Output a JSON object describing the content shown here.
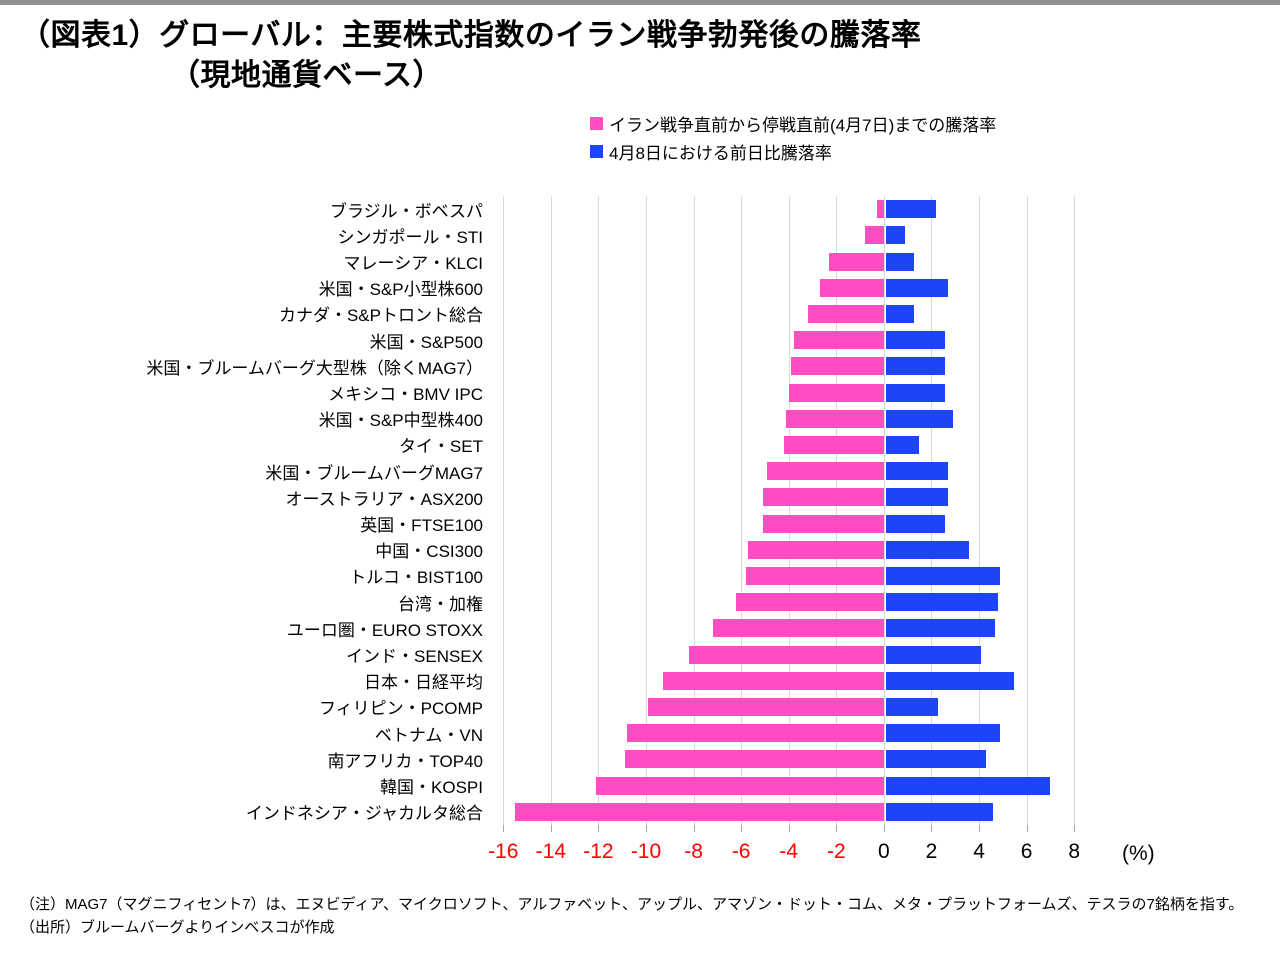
{
  "title": {
    "line1": "（図表1）グローバル：主要株式指数のイラン戦争勃発後の騰落率",
    "line2": "（現地通貨ベース）"
  },
  "legend": [
    {
      "label": "イラン戦争直前から停戦直前(4月7日)までの騰落率",
      "color": "#ff4cc3"
    },
    {
      "label": "4月8日における前日比騰落率",
      "color": "#1e44f5"
    }
  ],
  "chart_data": {
    "type": "bar",
    "orientation": "horizontal",
    "title": "（図表1）グローバル：主要株式指数のイラン戦争勃発後の騰落率（現地通貨ベース）",
    "xlabel": "(%)",
    "xlim": [
      -16.6,
      9.0
    ],
    "xticks": [
      -16,
      -14,
      -12,
      -10,
      -8,
      -6,
      -4,
      -2,
      0,
      2,
      4,
      6,
      8
    ],
    "grid": true,
    "legend_position": "top",
    "negative_tick_color": "#ff0000",
    "positive_tick_color": "#000000",
    "categories": [
      "ブラジル・ボベスパ",
      "シンガポール・STI",
      "マレーシア・KLCI",
      "米国・S&P小型株600",
      "カナダ・S&Pトロント総合",
      "米国・S&P500",
      "米国・ブルームバーグ大型株（除くMAG7）",
      "メキシコ・BMV IPC",
      "米国・S&P中型株400",
      "タイ・SET",
      "米国・ブルームバーグMAG7",
      "オーストラリア・ASX200",
      "英国・FTSE100",
      "中国・CSI300",
      "トルコ・BIST100",
      "台湾・加権",
      "ユーロ圏・EURO STOXX",
      "インド・SENSEX",
      "日本・日経平均",
      "フィリピン・PCOMP",
      "ベトナム・VN",
      "南アフリカ・TOP40",
      "韓国・KOSPI",
      "インドネシア・ジャカルタ総合"
    ],
    "series": [
      {
        "name": "イラン戦争直前から停戦直前(4月7日)までの騰落率",
        "color": "#ff4cc3",
        "values": [
          -0.3,
          -0.8,
          -2.3,
          -2.7,
          -3.2,
          -3.8,
          -3.9,
          -4.0,
          -4.1,
          -4.2,
          -4.9,
          -5.1,
          -5.1,
          -5.7,
          -5.8,
          -6.2,
          -7.2,
          -8.2,
          -9.3,
          -9.9,
          -10.8,
          -10.9,
          -12.1,
          -15.5
        ]
      },
      {
        "name": "4月8日における前日比騰落率",
        "color": "#1e44f5",
        "values": [
          2.1,
          0.8,
          1.2,
          2.6,
          1.2,
          2.5,
          2.5,
          2.5,
          2.8,
          1.4,
          2.6,
          2.6,
          2.5,
          3.5,
          4.8,
          4.7,
          4.6,
          4.0,
          5.4,
          2.2,
          4.8,
          4.2,
          6.9,
          4.5
        ]
      }
    ]
  },
  "notes": {
    "line1": "（注）MAG7（マグニフィセント7）は、エヌビディア、マイクロソフト、アルファベット、アップル、アマゾン・ドット・コム、メタ・プラットフォームズ、テスラの7銘柄を指す。",
    "line2": "（出所）ブルームバーグよりインベスコが作成"
  }
}
